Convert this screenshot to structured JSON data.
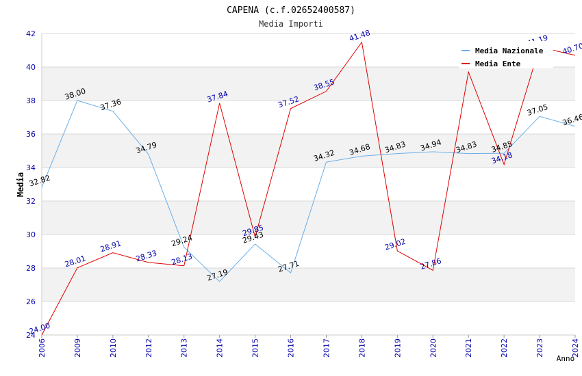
{
  "chart_data": {
    "type": "line",
    "title": "CAPENA (c.f.02652400587)",
    "subtitle": "Media Importi",
    "xlabel": "Anno",
    "ylabel": "Media",
    "ylim": [
      24,
      42
    ],
    "yticks": [
      24,
      26,
      28,
      30,
      32,
      34,
      36,
      38,
      40,
      42
    ],
    "categories": [
      "2006",
      "2009",
      "2010",
      "2012",
      "2013",
      "2014",
      "2015",
      "2016",
      "2017",
      "2018",
      "2019",
      "2020",
      "2021",
      "2022",
      "2023",
      "2024"
    ],
    "series": [
      {
        "name": "Media Nazionale",
        "color": "#6aaee8",
        "label_color": "#000000",
        "values": [
          32.82,
          38.0,
          37.36,
          34.79,
          29.24,
          27.19,
          29.43,
          27.71,
          34.32,
          34.68,
          34.83,
          34.94,
          34.83,
          34.85,
          37.05,
          36.46
        ],
        "labels": [
          "32.82",
          "38.00",
          "37.36",
          "34.79",
          "29.24",
          "27.19",
          "29.43",
          "27.71",
          "34.32",
          "34.68",
          "34.83",
          "34.94",
          "34.83",
          "34.85",
          "37.05",
          "36.46"
        ]
      },
      {
        "name": "Media Ente",
        "color": "#e00000",
        "label_color": "#0000aa",
        "values": [
          24.0,
          28.01,
          28.91,
          28.33,
          28.13,
          37.84,
          29.85,
          37.52,
          38.55,
          41.48,
          29.02,
          27.86,
          39.7,
          34.18,
          41.19,
          40.7
        ],
        "labels": [
          "24.00",
          "28.01",
          "28.91",
          "28.33",
          "28.13",
          "37.84",
          "29.85",
          "37.52",
          "38.55",
          "41.48",
          "29.02",
          "27.86",
          "",
          "34.18",
          "41.19",
          "40.70"
        ]
      }
    ],
    "legend_position": "top-right",
    "grid": true
  },
  "colors": {
    "band": "#f2f2f2",
    "grid": "#d8d8d8",
    "axis_tick_text": "#0000aa",
    "title_text": "#000000"
  }
}
